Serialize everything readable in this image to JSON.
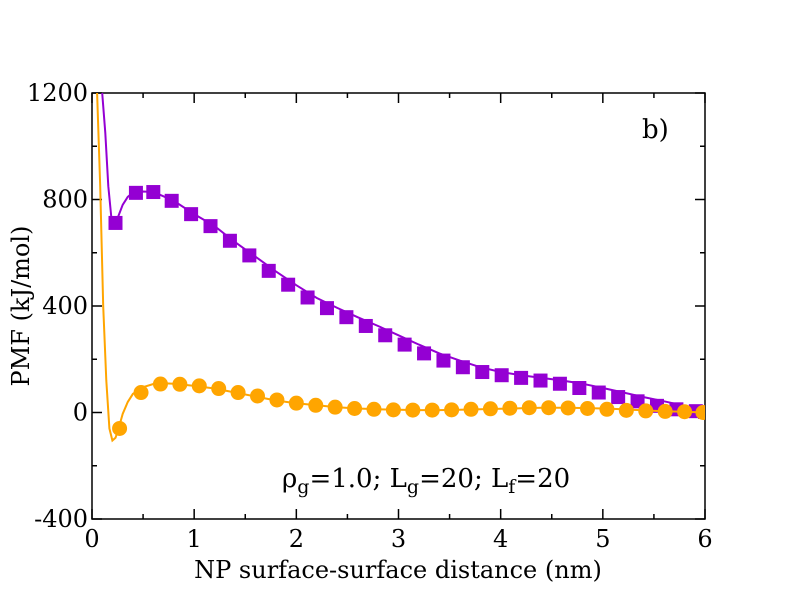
{
  "chart_data": {
    "type": "line",
    "title": "",
    "panel_label": "b)",
    "xlabel": "NP surface-surface distance (nm)",
    "ylabel": "PMF (kJ/mol)",
    "xlim": [
      0,
      6
    ],
    "ylim": [
      -400,
      1200
    ],
    "x_major_ticks": [
      0,
      1,
      2,
      3,
      4,
      5,
      6
    ],
    "x_tick_labels": [
      "0",
      "1",
      "2",
      "3",
      "4",
      "5",
      "6"
    ],
    "y_major_ticks": [
      -400,
      0,
      400,
      800,
      1200
    ],
    "y_tick_labels": [
      "-400",
      "0",
      "400",
      "800",
      "1200"
    ],
    "x_minor_step": 0.5,
    "y_minor_step": 200,
    "grid": false,
    "annotation": {
      "parts": [
        {
          "text": "ρ",
          "sub": false
        },
        {
          "text": "g",
          "sub": true
        },
        {
          "text": "=1.0; L",
          "sub": false
        },
        {
          "text": "g",
          "sub": true
        },
        {
          "text": "=20; L",
          "sub": false
        },
        {
          "text": "f",
          "sub": true
        },
        {
          "text": "=20",
          "sub": false
        }
      ]
    },
    "series": [
      {
        "name": "purple",
        "color": "#9400D3",
        "marker": "square",
        "line": [
          [
            0.1,
            1200
          ],
          [
            0.13,
            1050
          ],
          [
            0.16,
            850
          ],
          [
            0.19,
            730
          ],
          [
            0.22,
            705
          ],
          [
            0.26,
            740
          ],
          [
            0.3,
            780
          ],
          [
            0.35,
            810
          ],
          [
            0.4,
            825
          ],
          [
            0.5,
            830
          ],
          [
            0.6,
            828
          ],
          [
            0.7,
            812
          ],
          [
            0.8,
            795
          ],
          [
            1.0,
            745
          ],
          [
            1.2,
            700
          ],
          [
            1.4,
            640
          ],
          [
            1.6,
            585
          ],
          [
            1.8,
            530
          ],
          [
            2.0,
            478
          ],
          [
            2.2,
            430
          ],
          [
            2.4,
            393
          ],
          [
            2.6,
            358
          ],
          [
            2.8,
            325
          ],
          [
            3.0,
            290
          ],
          [
            3.2,
            255
          ],
          [
            3.4,
            222
          ],
          [
            3.6,
            195
          ],
          [
            3.8,
            170
          ],
          [
            4.0,
            152
          ],
          [
            4.2,
            140
          ],
          [
            4.4,
            130
          ],
          [
            4.6,
            120
          ],
          [
            4.8,
            108
          ],
          [
            5.0,
            92
          ],
          [
            5.2,
            75
          ],
          [
            5.4,
            58
          ],
          [
            5.6,
            42
          ],
          [
            5.8,
            25
          ],
          [
            6.0,
            5
          ]
        ],
        "markers_x": [
          0.23,
          0.43,
          0.6,
          0.78,
          0.97,
          1.16,
          1.35,
          1.54,
          1.73,
          1.92,
          2.11,
          2.3,
          2.49,
          2.68,
          2.87,
          3.06,
          3.25,
          3.44,
          3.63,
          3.82,
          4.01,
          4.2,
          4.39,
          4.58,
          4.77,
          4.96,
          5.15,
          5.34,
          5.53,
          5.72,
          5.91,
          6.0
        ],
        "markers_y": [
          712,
          825,
          828,
          795,
          745,
          700,
          645,
          590,
          532,
          480,
          432,
          392,
          358,
          325,
          290,
          255,
          222,
          195,
          170,
          152,
          140,
          130,
          120,
          108,
          92,
          75,
          58,
          42,
          25,
          12,
          5,
          2
        ]
      },
      {
        "name": "orange",
        "color": "#FFA500",
        "marker": "circle",
        "line": [
          [
            0.05,
            1200
          ],
          [
            0.08,
            850
          ],
          [
            0.11,
            400
          ],
          [
            0.14,
            120
          ],
          [
            0.17,
            -60
          ],
          [
            0.2,
            -105
          ],
          [
            0.23,
            -95
          ],
          [
            0.26,
            -60
          ],
          [
            0.3,
            -5
          ],
          [
            0.35,
            40
          ],
          [
            0.4,
            70
          ],
          [
            0.5,
            95
          ],
          [
            0.6,
            107
          ],
          [
            0.7,
            110
          ],
          [
            0.8,
            108
          ],
          [
            0.9,
            104
          ],
          [
            1.0,
            100
          ],
          [
            1.2,
            90
          ],
          [
            1.4,
            75
          ],
          [
            1.6,
            60
          ],
          [
            1.8,
            45
          ],
          [
            2.0,
            35
          ],
          [
            2.2,
            27
          ],
          [
            2.4,
            20
          ],
          [
            2.6,
            15
          ],
          [
            2.8,
            12
          ],
          [
            3.0,
            10
          ],
          [
            3.2,
            9
          ],
          [
            3.4,
            9
          ],
          [
            3.6,
            10
          ],
          [
            3.8,
            12
          ],
          [
            4.0,
            14
          ],
          [
            4.2,
            16
          ],
          [
            4.4,
            18
          ],
          [
            4.6,
            18
          ],
          [
            4.8,
            17
          ],
          [
            5.0,
            15
          ],
          [
            5.2,
            12
          ],
          [
            5.4,
            8
          ],
          [
            5.6,
            5
          ],
          [
            5.8,
            3
          ],
          [
            6.0,
            0
          ]
        ],
        "markers_x": [
          0.27,
          0.48,
          0.67,
          0.86,
          1.05,
          1.24,
          1.43,
          1.62,
          1.81,
          2.0,
          2.19,
          2.38,
          2.57,
          2.76,
          2.95,
          3.14,
          3.33,
          3.52,
          3.71,
          3.9,
          4.09,
          4.28,
          4.47,
          4.66,
          4.85,
          5.04,
          5.23,
          5.42,
          5.61,
          5.8,
          5.98
        ],
        "markers_y": [
          -60,
          75,
          107,
          106,
          100,
          90,
          75,
          62,
          47,
          35,
          27,
          20,
          15,
          12,
          10,
          9,
          9,
          10,
          12,
          14,
          16,
          18,
          18,
          17,
          15,
          12,
          8,
          6,
          4,
          3,
          0
        ]
      }
    ]
  }
}
